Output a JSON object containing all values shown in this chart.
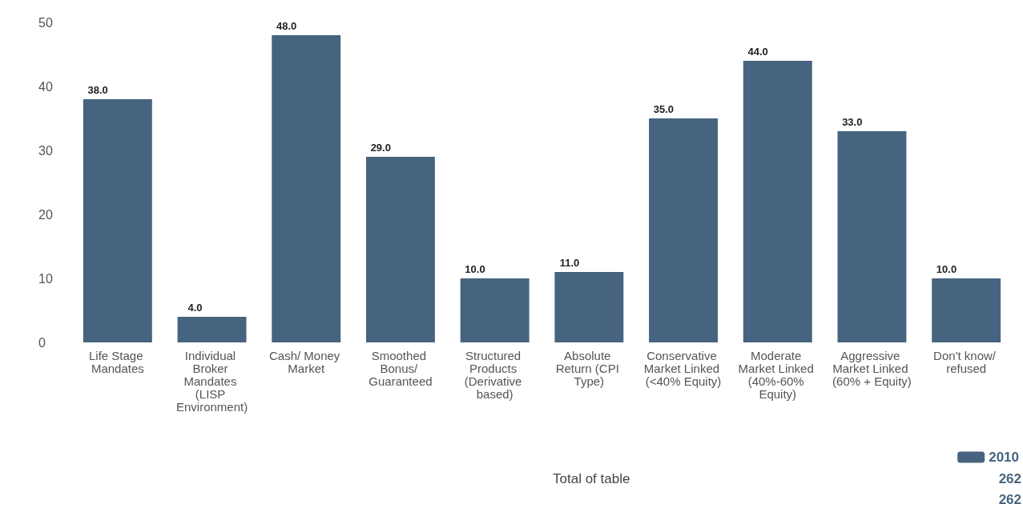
{
  "chart_data": {
    "type": "bar",
    "categories": [
      "Life Stage Mandates",
      "Individual Broker Mandates (LISP Environment)",
      "Cash/ Money Market",
      "Smoothed Bonus/ Guaranteed",
      "Structured Products (Derivative based)",
      "Absolute Return (CPI Type)",
      "Conservative Market Linked (<40% Equity)",
      "Moderate Market Linked (40%-60% Equity)",
      "Aggressive Market Linked (60% + Equity)",
      "Don't know/ refused"
    ],
    "series": [
      {
        "name": "2010",
        "color": "#46647f",
        "values": [
          38,
          4,
          48,
          29,
          10,
          11,
          35,
          44,
          33,
          10
        ],
        "value_labels": [
          "38.0",
          "4.0",
          "48.0",
          "29.0",
          "10.0",
          "11.0",
          "35.0",
          "44.0",
          "33.0",
          "10.0"
        ]
      }
    ],
    "ylim": [
      0,
      50
    ],
    "yticks": [
      0,
      10,
      20,
      30,
      40,
      50
    ],
    "grid": false,
    "legend": "bottom right",
    "annotations": [
      "Total of table",
      "262",
      "262"
    ]
  }
}
